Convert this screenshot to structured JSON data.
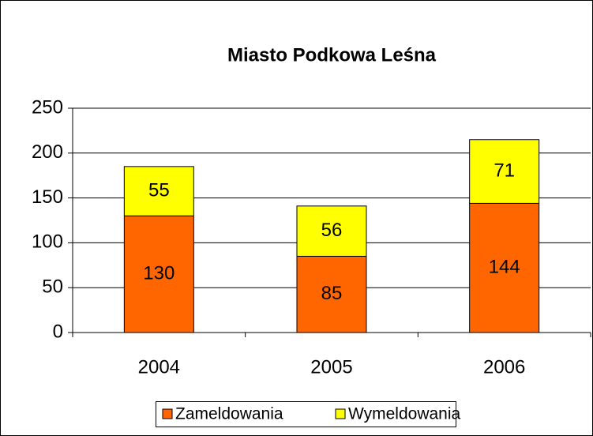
{
  "chart_data": {
    "type": "stacked_bar",
    "title": "Miasto Podkowa Leśna",
    "categories": [
      "2004",
      "2005",
      "2006"
    ],
    "series": [
      {
        "name": "Zameldowania",
        "color": "#ff6600",
        "values": [
          130,
          85,
          144
        ]
      },
      {
        "name": "Wymeldowania",
        "color": "#ffff00",
        "values": [
          55,
          56,
          71
        ]
      }
    ],
    "ylim": [
      0,
      250
    ],
    "yticks": [
      0,
      50,
      100,
      150,
      200,
      250
    ],
    "grid": true,
    "legend": "bottom"
  }
}
